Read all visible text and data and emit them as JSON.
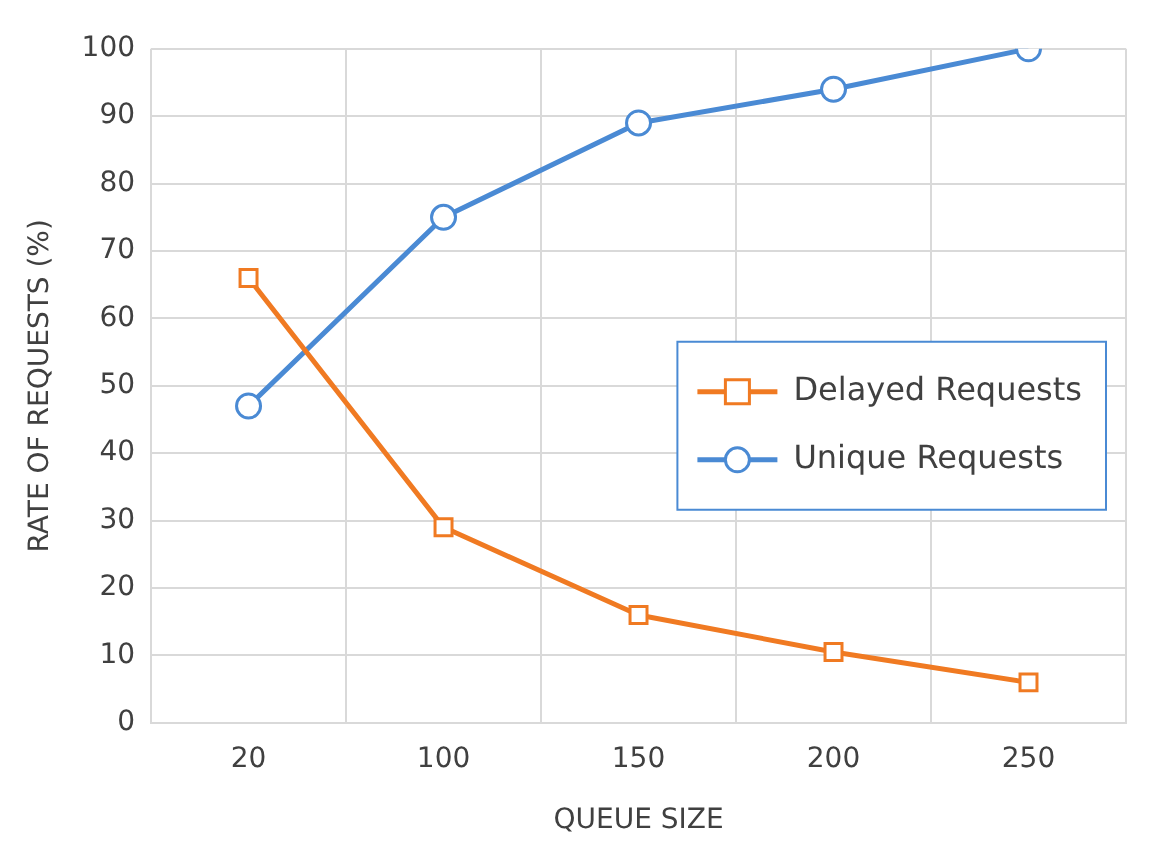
{
  "chart_data": {
    "type": "line",
    "xlabel": "QUEUE SIZE",
    "ylabel": "RATE OF REQUESTS (%)",
    "categories": [
      "20",
      "100",
      "150",
      "200",
      "250"
    ],
    "series": [
      {
        "name": "Delayed Requests",
        "color": "#f07a22",
        "marker": "square",
        "values": [
          66,
          29,
          16,
          10.5,
          6
        ]
      },
      {
        "name": "Unique Requests",
        "color": "#4a8ad4",
        "marker": "circle",
        "values": [
          47,
          75,
          89,
          94,
          100
        ]
      }
    ],
    "ylim": [
      0,
      100
    ],
    "yticks": [
      0,
      10,
      20,
      30,
      40,
      50,
      60,
      70,
      80,
      90,
      100
    ],
    "grid": true,
    "legend": "right",
    "line_style": "solid"
  }
}
